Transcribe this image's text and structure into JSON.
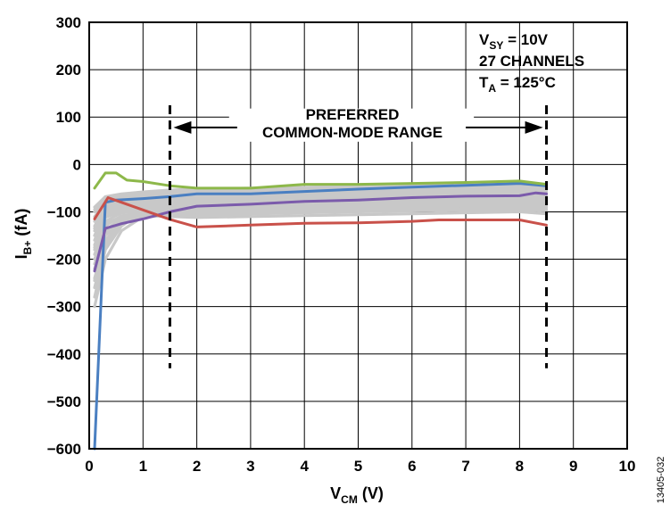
{
  "chart_data": {
    "type": "line",
    "xlabel": {
      "main": "V",
      "sub": "CM",
      "unit": " (V)"
    },
    "ylabel": {
      "main": "I",
      "sub": "B+",
      "unit": " (fA)"
    },
    "xlim": [
      0,
      10
    ],
    "ylim": [
      -600,
      300
    ],
    "xticks": [
      0,
      1,
      2,
      3,
      4,
      5,
      6,
      7,
      8,
      9,
      10
    ],
    "yticks": [
      300,
      200,
      100,
      0,
      -100,
      -200,
      -300,
      -400,
      -500,
      -600
    ],
    "ytick_labels": [
      "300",
      "200",
      "100",
      "0",
      "−100",
      "−200",
      "−300",
      "−400",
      "−500",
      "−600"
    ],
    "grid": true,
    "conditions": [
      {
        "main": "V",
        "sub": "SY",
        "rest": " = 10V"
      },
      {
        "main": "27 CHANNELS",
        "sub": "",
        "rest": ""
      },
      {
        "main": "T",
        "sub": "A",
        "rest": " = 125°C"
      }
    ],
    "annotation": {
      "line1": "PREFERRED",
      "line2": "COMMON-MODE RANGE",
      "x_start": 1.5,
      "x_end": 8.5,
      "arrow_y": 78,
      "dash_top": 125,
      "dash_bottom": -430
    },
    "figure_id": "13405-032",
    "series": [
      {
        "color": "#4a7fc1",
        "highlight": true,
        "points": [
          [
            0.1,
            -600
          ],
          [
            0.3,
            -80
          ],
          [
            0.5,
            -75
          ],
          [
            1.0,
            -72
          ],
          [
            1.5,
            -68
          ],
          [
            2,
            -62
          ],
          [
            3,
            -62
          ],
          [
            4,
            -57
          ],
          [
            5,
            -52
          ],
          [
            6,
            -48
          ],
          [
            7,
            -44
          ],
          [
            8,
            -40
          ],
          [
            8.5,
            -45
          ]
        ]
      },
      {
        "color": "#8db84a",
        "highlight": true,
        "points": [
          [
            0.1,
            -50
          ],
          [
            0.3,
            -18
          ],
          [
            0.5,
            -18
          ],
          [
            0.7,
            -33
          ],
          [
            1,
            -36
          ],
          [
            1.5,
            -45
          ],
          [
            2,
            -50
          ],
          [
            3,
            -50
          ],
          [
            4,
            -42
          ],
          [
            5,
            -42
          ],
          [
            6,
            -40
          ],
          [
            7,
            -38
          ],
          [
            8,
            -35
          ],
          [
            8.5,
            -42
          ]
        ]
      },
      {
        "color": "#7b5bab",
        "highlight": true,
        "points": [
          [
            0.1,
            -225
          ],
          [
            0.3,
            -135
          ],
          [
            0.6,
            -125
          ],
          [
            1,
            -115
          ],
          [
            1.5,
            -100
          ],
          [
            2,
            -88
          ],
          [
            3,
            -84
          ],
          [
            4,
            -78
          ],
          [
            5,
            -75
          ],
          [
            6,
            -70
          ],
          [
            7,
            -67
          ],
          [
            8,
            -66
          ],
          [
            8.3,
            -60
          ],
          [
            8.5,
            -62
          ]
        ]
      },
      {
        "color": "#c9514a",
        "highlight": true,
        "points": [
          [
            0.1,
            -115
          ],
          [
            0.35,
            -70
          ],
          [
            0.6,
            -80
          ],
          [
            1,
            -96
          ],
          [
            1.5,
            -116
          ],
          [
            2,
            -132
          ],
          [
            3,
            -128
          ],
          [
            4,
            -124
          ],
          [
            5,
            -123
          ],
          [
            6,
            -120
          ],
          [
            6.5,
            -117
          ],
          [
            7,
            -117
          ],
          [
            8,
            -117
          ],
          [
            8.5,
            -128
          ]
        ]
      },
      {
        "color": "#c8c8c8",
        "points": [
          [
            0.1,
            -300
          ],
          [
            0.3,
            -200
          ],
          [
            0.6,
            -140
          ],
          [
            1,
            -110
          ],
          [
            1.5,
            -90
          ],
          [
            2,
            -82
          ],
          [
            4,
            -80
          ],
          [
            6,
            -76
          ],
          [
            8,
            -72
          ],
          [
            8.5,
            -72
          ]
        ]
      },
      {
        "color": "#c8c8c8",
        "points": [
          [
            0.1,
            -280
          ],
          [
            0.3,
            -180
          ],
          [
            0.6,
            -130
          ],
          [
            1,
            -100
          ],
          [
            1.5,
            -85
          ],
          [
            2,
            -78
          ],
          [
            4,
            -74
          ],
          [
            6,
            -70
          ],
          [
            8,
            -66
          ],
          [
            8.5,
            -66
          ]
        ]
      },
      {
        "color": "#c8c8c8",
        "points": [
          [
            0.1,
            -260
          ],
          [
            0.3,
            -170
          ],
          [
            0.6,
            -125
          ],
          [
            1,
            -105
          ],
          [
            1.5,
            -96
          ],
          [
            2,
            -90
          ],
          [
            4,
            -86
          ],
          [
            6,
            -82
          ],
          [
            8,
            -78
          ],
          [
            8.5,
            -80
          ]
        ]
      },
      {
        "color": "#c8c8c8",
        "points": [
          [
            0.1,
            -240
          ],
          [
            0.3,
            -160
          ],
          [
            0.6,
            -120
          ],
          [
            1,
            -112
          ],
          [
            1.5,
            -106
          ],
          [
            2,
            -100
          ],
          [
            4,
            -96
          ],
          [
            6,
            -92
          ],
          [
            8,
            -88
          ],
          [
            8.5,
            -90
          ]
        ]
      },
      {
        "color": "#c8c8c8",
        "points": [
          [
            0.1,
            -220
          ],
          [
            0.3,
            -150
          ],
          [
            0.6,
            -118
          ],
          [
            1,
            -110
          ],
          [
            1.5,
            -106
          ],
          [
            2,
            -104
          ],
          [
            4,
            -100
          ],
          [
            6,
            -96
          ],
          [
            8,
            -92
          ],
          [
            8.5,
            -95
          ]
        ]
      },
      {
        "color": "#c8c8c8",
        "points": [
          [
            0.1,
            -200
          ],
          [
            0.3,
            -140
          ],
          [
            0.6,
            -112
          ],
          [
            1,
            -108
          ],
          [
            1.5,
            -110
          ],
          [
            2,
            -112
          ],
          [
            4,
            -108
          ],
          [
            6,
            -104
          ],
          [
            8,
            -100
          ],
          [
            8.5,
            -104
          ]
        ]
      },
      {
        "color": "#c8c8c8",
        "points": [
          [
            0.1,
            -190
          ],
          [
            0.3,
            -130
          ],
          [
            0.6,
            -108
          ],
          [
            1,
            -104
          ],
          [
            1.5,
            -105
          ],
          [
            2,
            -107
          ],
          [
            4,
            -102
          ],
          [
            6,
            -98
          ],
          [
            8,
            -95
          ],
          [
            8.5,
            -98
          ]
        ]
      },
      {
        "color": "#c8c8c8",
        "points": [
          [
            0.1,
            -180
          ],
          [
            0.3,
            -120
          ],
          [
            0.6,
            -102
          ],
          [
            1,
            -100
          ],
          [
            1.5,
            -98
          ],
          [
            2,
            -96
          ],
          [
            4,
            -93
          ],
          [
            6,
            -90
          ],
          [
            8,
            -86
          ],
          [
            8.5,
            -88
          ]
        ]
      },
      {
        "color": "#c8c8c8",
        "points": [
          [
            0.1,
            -170
          ],
          [
            0.3,
            -112
          ],
          [
            0.6,
            -98
          ],
          [
            1,
            -95
          ],
          [
            1.5,
            -92
          ],
          [
            2,
            -90
          ],
          [
            4,
            -86
          ],
          [
            6,
            -82
          ],
          [
            8,
            -80
          ],
          [
            8.5,
            -82
          ]
        ]
      },
      {
        "color": "#c8c8c8",
        "points": [
          [
            0.1,
            -160
          ],
          [
            0.3,
            -105
          ],
          [
            0.6,
            -95
          ],
          [
            1,
            -90
          ],
          [
            1.5,
            -86
          ],
          [
            2,
            -84
          ],
          [
            4,
            -80
          ],
          [
            6,
            -77
          ],
          [
            8,
            -74
          ],
          [
            8.5,
            -76
          ]
        ]
      },
      {
        "color": "#c8c8c8",
        "points": [
          [
            0.1,
            -150
          ],
          [
            0.3,
            -100
          ],
          [
            0.6,
            -90
          ],
          [
            1,
            -86
          ],
          [
            1.5,
            -82
          ],
          [
            2,
            -78
          ],
          [
            4,
            -74
          ],
          [
            6,
            -70
          ],
          [
            8,
            -68
          ],
          [
            8.5,
            -70
          ]
        ]
      },
      {
        "color": "#c8c8c8",
        "points": [
          [
            0.1,
            -140
          ],
          [
            0.3,
            -95
          ],
          [
            0.6,
            -86
          ],
          [
            1,
            -82
          ],
          [
            1.5,
            -78
          ],
          [
            2,
            -74
          ],
          [
            4,
            -70
          ],
          [
            6,
            -66
          ],
          [
            8,
            -62
          ],
          [
            8.5,
            -64
          ]
        ]
      },
      {
        "color": "#c8c8c8",
        "points": [
          [
            0.1,
            -130
          ],
          [
            0.3,
            -90
          ],
          [
            0.6,
            -82
          ],
          [
            1,
            -78
          ],
          [
            1.5,
            -74
          ],
          [
            2,
            -70
          ],
          [
            4,
            -66
          ],
          [
            6,
            -62
          ],
          [
            8,
            -58
          ],
          [
            8.5,
            -60
          ]
        ]
      },
      {
        "color": "#c8c8c8",
        "points": [
          [
            0.1,
            -120
          ],
          [
            0.3,
            -85
          ],
          [
            0.6,
            -78
          ],
          [
            1,
            -74
          ],
          [
            1.5,
            -70
          ],
          [
            2,
            -66
          ],
          [
            4,
            -62
          ],
          [
            6,
            -58
          ],
          [
            8,
            -54
          ],
          [
            8.5,
            -56
          ]
        ]
      },
      {
        "color": "#c8c8c8",
        "points": [
          [
            0.1,
            -110
          ],
          [
            0.3,
            -80
          ],
          [
            0.6,
            -74
          ],
          [
            1,
            -70
          ],
          [
            1.5,
            -66
          ],
          [
            2,
            -62
          ],
          [
            4,
            -58
          ],
          [
            6,
            -54
          ],
          [
            8,
            -50
          ],
          [
            8.5,
            -52
          ]
        ]
      },
      {
        "color": "#c8c8c8",
        "points": [
          [
            0.1,
            -100
          ],
          [
            0.3,
            -75
          ],
          [
            0.6,
            -70
          ],
          [
            1,
            -66
          ],
          [
            1.5,
            -62
          ],
          [
            2,
            -58
          ],
          [
            4,
            -54
          ],
          [
            6,
            -50
          ],
          [
            8,
            -46
          ],
          [
            8.5,
            -48
          ]
        ]
      },
      {
        "color": "#c8c8c8",
        "points": [
          [
            0.1,
            -95
          ],
          [
            0.3,
            -72
          ],
          [
            0.6,
            -66
          ],
          [
            1,
            -62
          ],
          [
            1.5,
            -58
          ],
          [
            2,
            -55
          ],
          [
            4,
            -50
          ],
          [
            6,
            -46
          ],
          [
            8,
            -42
          ],
          [
            8.5,
            -44
          ]
        ]
      },
      {
        "color": "#c8c8c8",
        "points": [
          [
            0.1,
            -90
          ],
          [
            0.3,
            -68
          ],
          [
            0.6,
            -62
          ],
          [
            1,
            -58
          ],
          [
            1.5,
            -54
          ],
          [
            2,
            -52
          ],
          [
            4,
            -48
          ],
          [
            6,
            -44
          ],
          [
            8,
            -40
          ],
          [
            8.5,
            -42
          ]
        ]
      },
      {
        "color": "#c8c8c8",
        "points": [
          [
            0.1,
            -150
          ],
          [
            0.3,
            -110
          ],
          [
            0.6,
            -100
          ],
          [
            1,
            -96
          ],
          [
            1.5,
            -94
          ],
          [
            2,
            -92
          ],
          [
            4,
            -88
          ],
          [
            6,
            -86
          ],
          [
            8,
            -84
          ],
          [
            8.5,
            -86
          ]
        ]
      },
      {
        "color": "#c8c8c8",
        "points": [
          [
            0.1,
            -135
          ],
          [
            0.3,
            -98
          ],
          [
            0.6,
            -92
          ],
          [
            1,
            -88
          ],
          [
            1.5,
            -85
          ],
          [
            2,
            -82
          ],
          [
            4,
            -78
          ],
          [
            6,
            -74
          ],
          [
            8,
            -70
          ],
          [
            8.5,
            -72
          ]
        ]
      },
      {
        "color": "#c8c8c8",
        "points": [
          [
            0.1,
            -175
          ],
          [
            0.3,
            -125
          ],
          [
            0.6,
            -110
          ],
          [
            1,
            -106
          ],
          [
            1.5,
            -102
          ],
          [
            2,
            -98
          ],
          [
            4,
            -94
          ],
          [
            6,
            -90
          ],
          [
            8,
            -84
          ],
          [
            8.5,
            -86
          ]
        ]
      },
      {
        "color": "#c8c8c8",
        "points": [
          [
            0.1,
            -245
          ],
          [
            0.3,
            -165
          ],
          [
            0.6,
            -125
          ],
          [
            1,
            -112
          ],
          [
            1.5,
            -104
          ],
          [
            2,
            -100
          ],
          [
            4,
            -98
          ],
          [
            6,
            -95
          ],
          [
            8,
            -92
          ],
          [
            8.5,
            -94
          ]
        ]
      },
      {
        "color": "#c8c8c8",
        "points": [
          [
            0.1,
            -210
          ],
          [
            0.3,
            -145
          ],
          [
            0.6,
            -115
          ],
          [
            1,
            -108
          ],
          [
            1.5,
            -102
          ],
          [
            2,
            -95
          ],
          [
            4,
            -90
          ],
          [
            6,
            -86
          ],
          [
            8,
            -82
          ],
          [
            8.5,
            -84
          ]
        ]
      }
    ]
  }
}
